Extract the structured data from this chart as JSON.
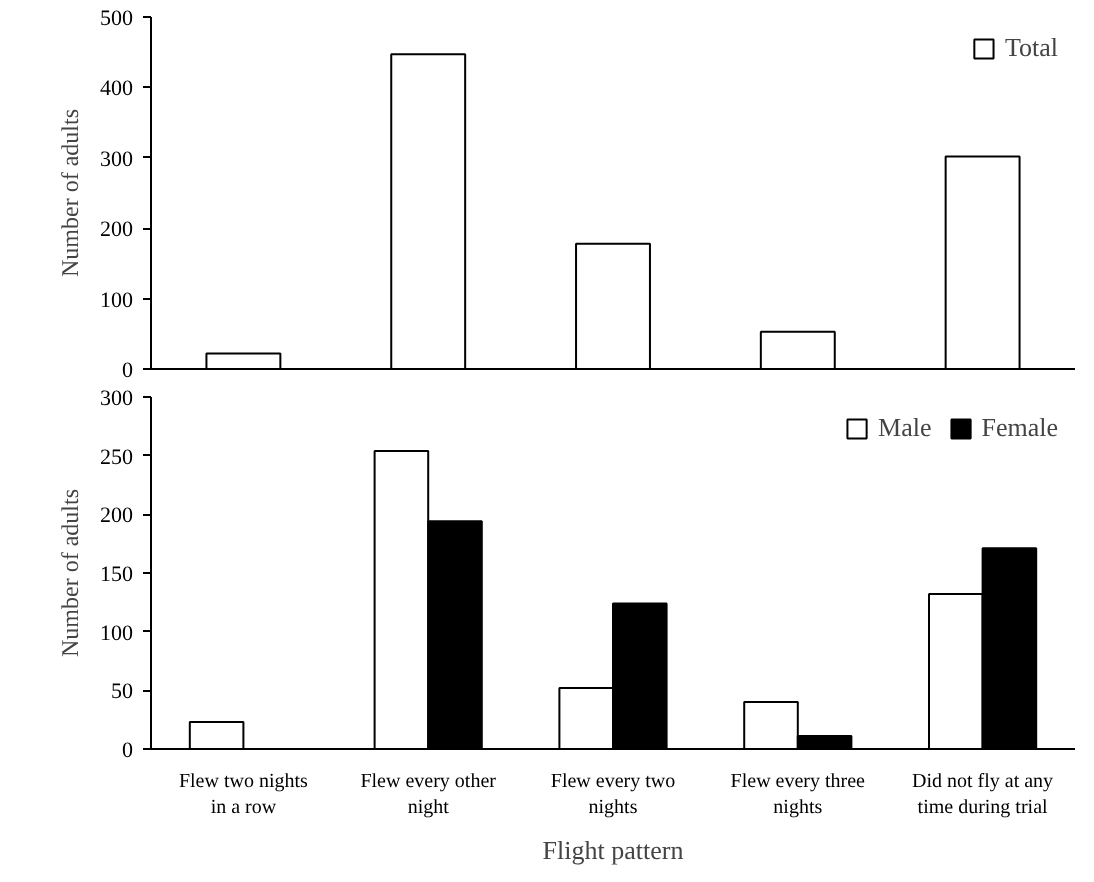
{
  "chart_data": [
    {
      "type": "bar",
      "ylabel": "Number of adults",
      "categories": [
        null,
        null,
        null,
        null,
        null
      ],
      "tick_labels": "y",
      "ylim": [
        0,
        500
      ],
      "yticks": [
        0,
        100,
        200,
        300,
        400,
        500
      ],
      "legend": "top right",
      "series": [
        {
          "name": "Total",
          "color": "#ffffff",
          "values": [
            22,
            447,
            178,
            53,
            302
          ]
        }
      ]
    },
    {
      "type": "bar",
      "ylabel": "Number of adults",
      "xlabel": "Flight pattern",
      "categories": [
        "Flew two nights\nin a row",
        "Flew every other\nnight",
        "Flew every two\nnights",
        "Flew every three\nnights",
        "Did not fly at any\ntime during trial"
      ],
      "ylim": [
        0,
        300
      ],
      "yticks": [
        0,
        50,
        100,
        150,
        200,
        250,
        300
      ],
      "legend": "top right",
      "series": [
        {
          "name": "Male",
          "color": "#ffffff",
          "values": [
            23,
            254,
            52,
            40,
            132
          ]
        },
        {
          "name": "Female",
          "color": "#000000",
          "values": [
            0,
            194,
            124,
            11,
            171
          ]
        }
      ]
    }
  ]
}
